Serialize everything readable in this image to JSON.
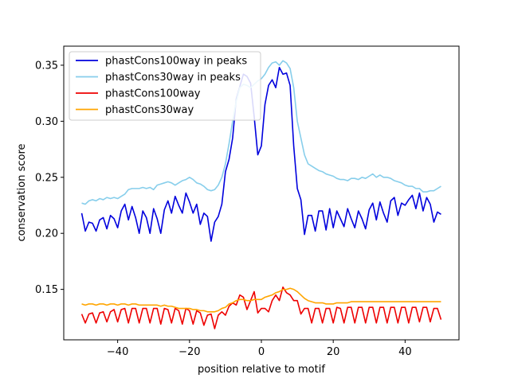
{
  "chart_data": {
    "type": "line",
    "title": "",
    "xlabel": "position relative to motif",
    "ylabel": "conservation score",
    "xlim": [
      -55,
      55
    ],
    "ylim": [
      0.105,
      0.367
    ],
    "xticks": [
      -40,
      -20,
      0,
      20,
      40
    ],
    "yticks": [
      0.15,
      0.2,
      0.25,
      0.3,
      0.35
    ],
    "ytick_labels": [
      "0.15",
      "0.20",
      "0.25",
      "0.30",
      "0.35"
    ],
    "legend_position": "upper-left",
    "grid": false,
    "x": [
      -50,
      -49,
      -48,
      -47,
      -46,
      -45,
      -44,
      -43,
      -42,
      -41,
      -40,
      -39,
      -38,
      -37,
      -36,
      -35,
      -34,
      -33,
      -32,
      -31,
      -30,
      -29,
      -28,
      -27,
      -26,
      -25,
      -24,
      -23,
      -22,
      -21,
      -20,
      -19,
      -18,
      -17,
      -16,
      -15,
      -14,
      -13,
      -12,
      -11,
      -10,
      -9,
      -8,
      -7,
      -6,
      -5,
      -4,
      -3,
      -2,
      -1,
      0,
      1,
      2,
      3,
      4,
      5,
      6,
      7,
      8,
      9,
      10,
      11,
      12,
      13,
      14,
      15,
      16,
      17,
      18,
      19,
      20,
      21,
      22,
      23,
      24,
      25,
      26,
      27,
      28,
      29,
      30,
      31,
      32,
      33,
      34,
      35,
      36,
      37,
      38,
      39,
      40,
      41,
      42,
      43,
      44,
      45,
      46,
      47,
      48,
      49,
      50
    ],
    "series": [
      {
        "name": "phastCons100way in peaks",
        "color": "#0000dd",
        "values": [
          0.218,
          0.202,
          0.21,
          0.209,
          0.202,
          0.212,
          0.214,
          0.204,
          0.216,
          0.213,
          0.205,
          0.22,
          0.226,
          0.212,
          0.224,
          0.214,
          0.2,
          0.22,
          0.214,
          0.2,
          0.222,
          0.213,
          0.2,
          0.221,
          0.229,
          0.218,
          0.233,
          0.225,
          0.218,
          0.236,
          0.228,
          0.218,
          0.226,
          0.208,
          0.218,
          0.215,
          0.193,
          0.21,
          0.215,
          0.226,
          0.255,
          0.266,
          0.285,
          0.32,
          0.331,
          0.342,
          0.34,
          0.334,
          0.304,
          0.27,
          0.278,
          0.315,
          0.332,
          0.337,
          0.33,
          0.348,
          0.342,
          0.343,
          0.332,
          0.278,
          0.24,
          0.23,
          0.199,
          0.216,
          0.216,
          0.202,
          0.22,
          0.22,
          0.203,
          0.222,
          0.205,
          0.22,
          0.213,
          0.206,
          0.222,
          0.213,
          0.205,
          0.22,
          0.213,
          0.204,
          0.221,
          0.227,
          0.212,
          0.228,
          0.218,
          0.21,
          0.229,
          0.232,
          0.216,
          0.227,
          0.225,
          0.23,
          0.234,
          0.222,
          0.236,
          0.22,
          0.232,
          0.226,
          0.21,
          0.219,
          0.217
        ]
      },
      {
        "name": "phastCons30way in peaks",
        "color": "#87ceeb",
        "values": [
          0.227,
          0.226,
          0.229,
          0.23,
          0.229,
          0.231,
          0.23,
          0.232,
          0.231,
          0.232,
          0.231,
          0.233,
          0.235,
          0.239,
          0.24,
          0.24,
          0.24,
          0.241,
          0.24,
          0.241,
          0.239,
          0.243,
          0.244,
          0.245,
          0.246,
          0.245,
          0.243,
          0.245,
          0.247,
          0.248,
          0.25,
          0.248,
          0.245,
          0.244,
          0.242,
          0.239,
          0.238,
          0.239,
          0.243,
          0.25,
          0.262,
          0.28,
          0.3,
          0.318,
          0.33,
          0.333,
          0.332,
          0.33,
          0.333,
          0.336,
          0.338,
          0.342,
          0.348,
          0.352,
          0.353,
          0.35,
          0.354,
          0.352,
          0.347,
          0.33,
          0.3,
          0.285,
          0.27,
          0.262,
          0.26,
          0.258,
          0.256,
          0.255,
          0.253,
          0.252,
          0.251,
          0.249,
          0.248,
          0.248,
          0.247,
          0.249,
          0.249,
          0.248,
          0.25,
          0.249,
          0.251,
          0.253,
          0.25,
          0.252,
          0.25,
          0.25,
          0.249,
          0.247,
          0.246,
          0.245,
          0.243,
          0.242,
          0.242,
          0.24,
          0.24,
          0.237,
          0.237,
          0.238,
          0.238,
          0.24,
          0.242
        ]
      },
      {
        "name": "phastCons100way",
        "color": "#ee0000",
        "values": [
          0.128,
          0.12,
          0.128,
          0.129,
          0.12,
          0.129,
          0.13,
          0.121,
          0.13,
          0.132,
          0.121,
          0.132,
          0.133,
          0.12,
          0.133,
          0.133,
          0.12,
          0.133,
          0.133,
          0.12,
          0.133,
          0.133,
          0.119,
          0.133,
          0.132,
          0.12,
          0.133,
          0.131,
          0.119,
          0.133,
          0.131,
          0.119,
          0.131,
          0.129,
          0.118,
          0.127,
          0.128,
          0.115,
          0.127,
          0.13,
          0.127,
          0.135,
          0.138,
          0.136,
          0.145,
          0.143,
          0.132,
          0.14,
          0.148,
          0.129,
          0.133,
          0.133,
          0.13,
          0.14,
          0.145,
          0.14,
          0.152,
          0.147,
          0.145,
          0.14,
          0.14,
          0.128,
          0.133,
          0.133,
          0.12,
          0.133,
          0.133,
          0.12,
          0.133,
          0.133,
          0.12,
          0.134,
          0.133,
          0.12,
          0.134,
          0.134,
          0.12,
          0.134,
          0.134,
          0.12,
          0.134,
          0.134,
          0.12,
          0.134,
          0.134,
          0.12,
          0.134,
          0.134,
          0.12,
          0.134,
          0.134,
          0.12,
          0.134,
          0.134,
          0.121,
          0.134,
          0.134,
          0.121,
          0.133,
          0.133,
          0.123
        ]
      },
      {
        "name": "phastCons30way",
        "color": "#ffa500",
        "values": [
          0.137,
          0.136,
          0.137,
          0.137,
          0.136,
          0.137,
          0.137,
          0.136,
          0.137,
          0.137,
          0.136,
          0.137,
          0.137,
          0.136,
          0.137,
          0.137,
          0.136,
          0.136,
          0.136,
          0.136,
          0.136,
          0.136,
          0.135,
          0.136,
          0.135,
          0.135,
          0.134,
          0.133,
          0.133,
          0.133,
          0.133,
          0.132,
          0.132,
          0.131,
          0.131,
          0.13,
          0.13,
          0.13,
          0.131,
          0.133,
          0.134,
          0.137,
          0.138,
          0.14,
          0.141,
          0.141,
          0.14,
          0.14,
          0.141,
          0.141,
          0.141,
          0.143,
          0.144,
          0.145,
          0.147,
          0.148,
          0.15,
          0.15,
          0.151,
          0.15,
          0.148,
          0.145,
          0.142,
          0.14,
          0.139,
          0.138,
          0.138,
          0.138,
          0.137,
          0.137,
          0.137,
          0.138,
          0.138,
          0.138,
          0.138,
          0.139,
          0.139,
          0.139,
          0.139,
          0.139,
          0.139,
          0.139,
          0.139,
          0.139,
          0.139,
          0.139,
          0.139,
          0.139,
          0.139,
          0.139,
          0.139,
          0.139,
          0.139,
          0.139,
          0.139,
          0.139,
          0.139,
          0.139,
          0.139,
          0.139,
          0.139
        ]
      }
    ]
  }
}
